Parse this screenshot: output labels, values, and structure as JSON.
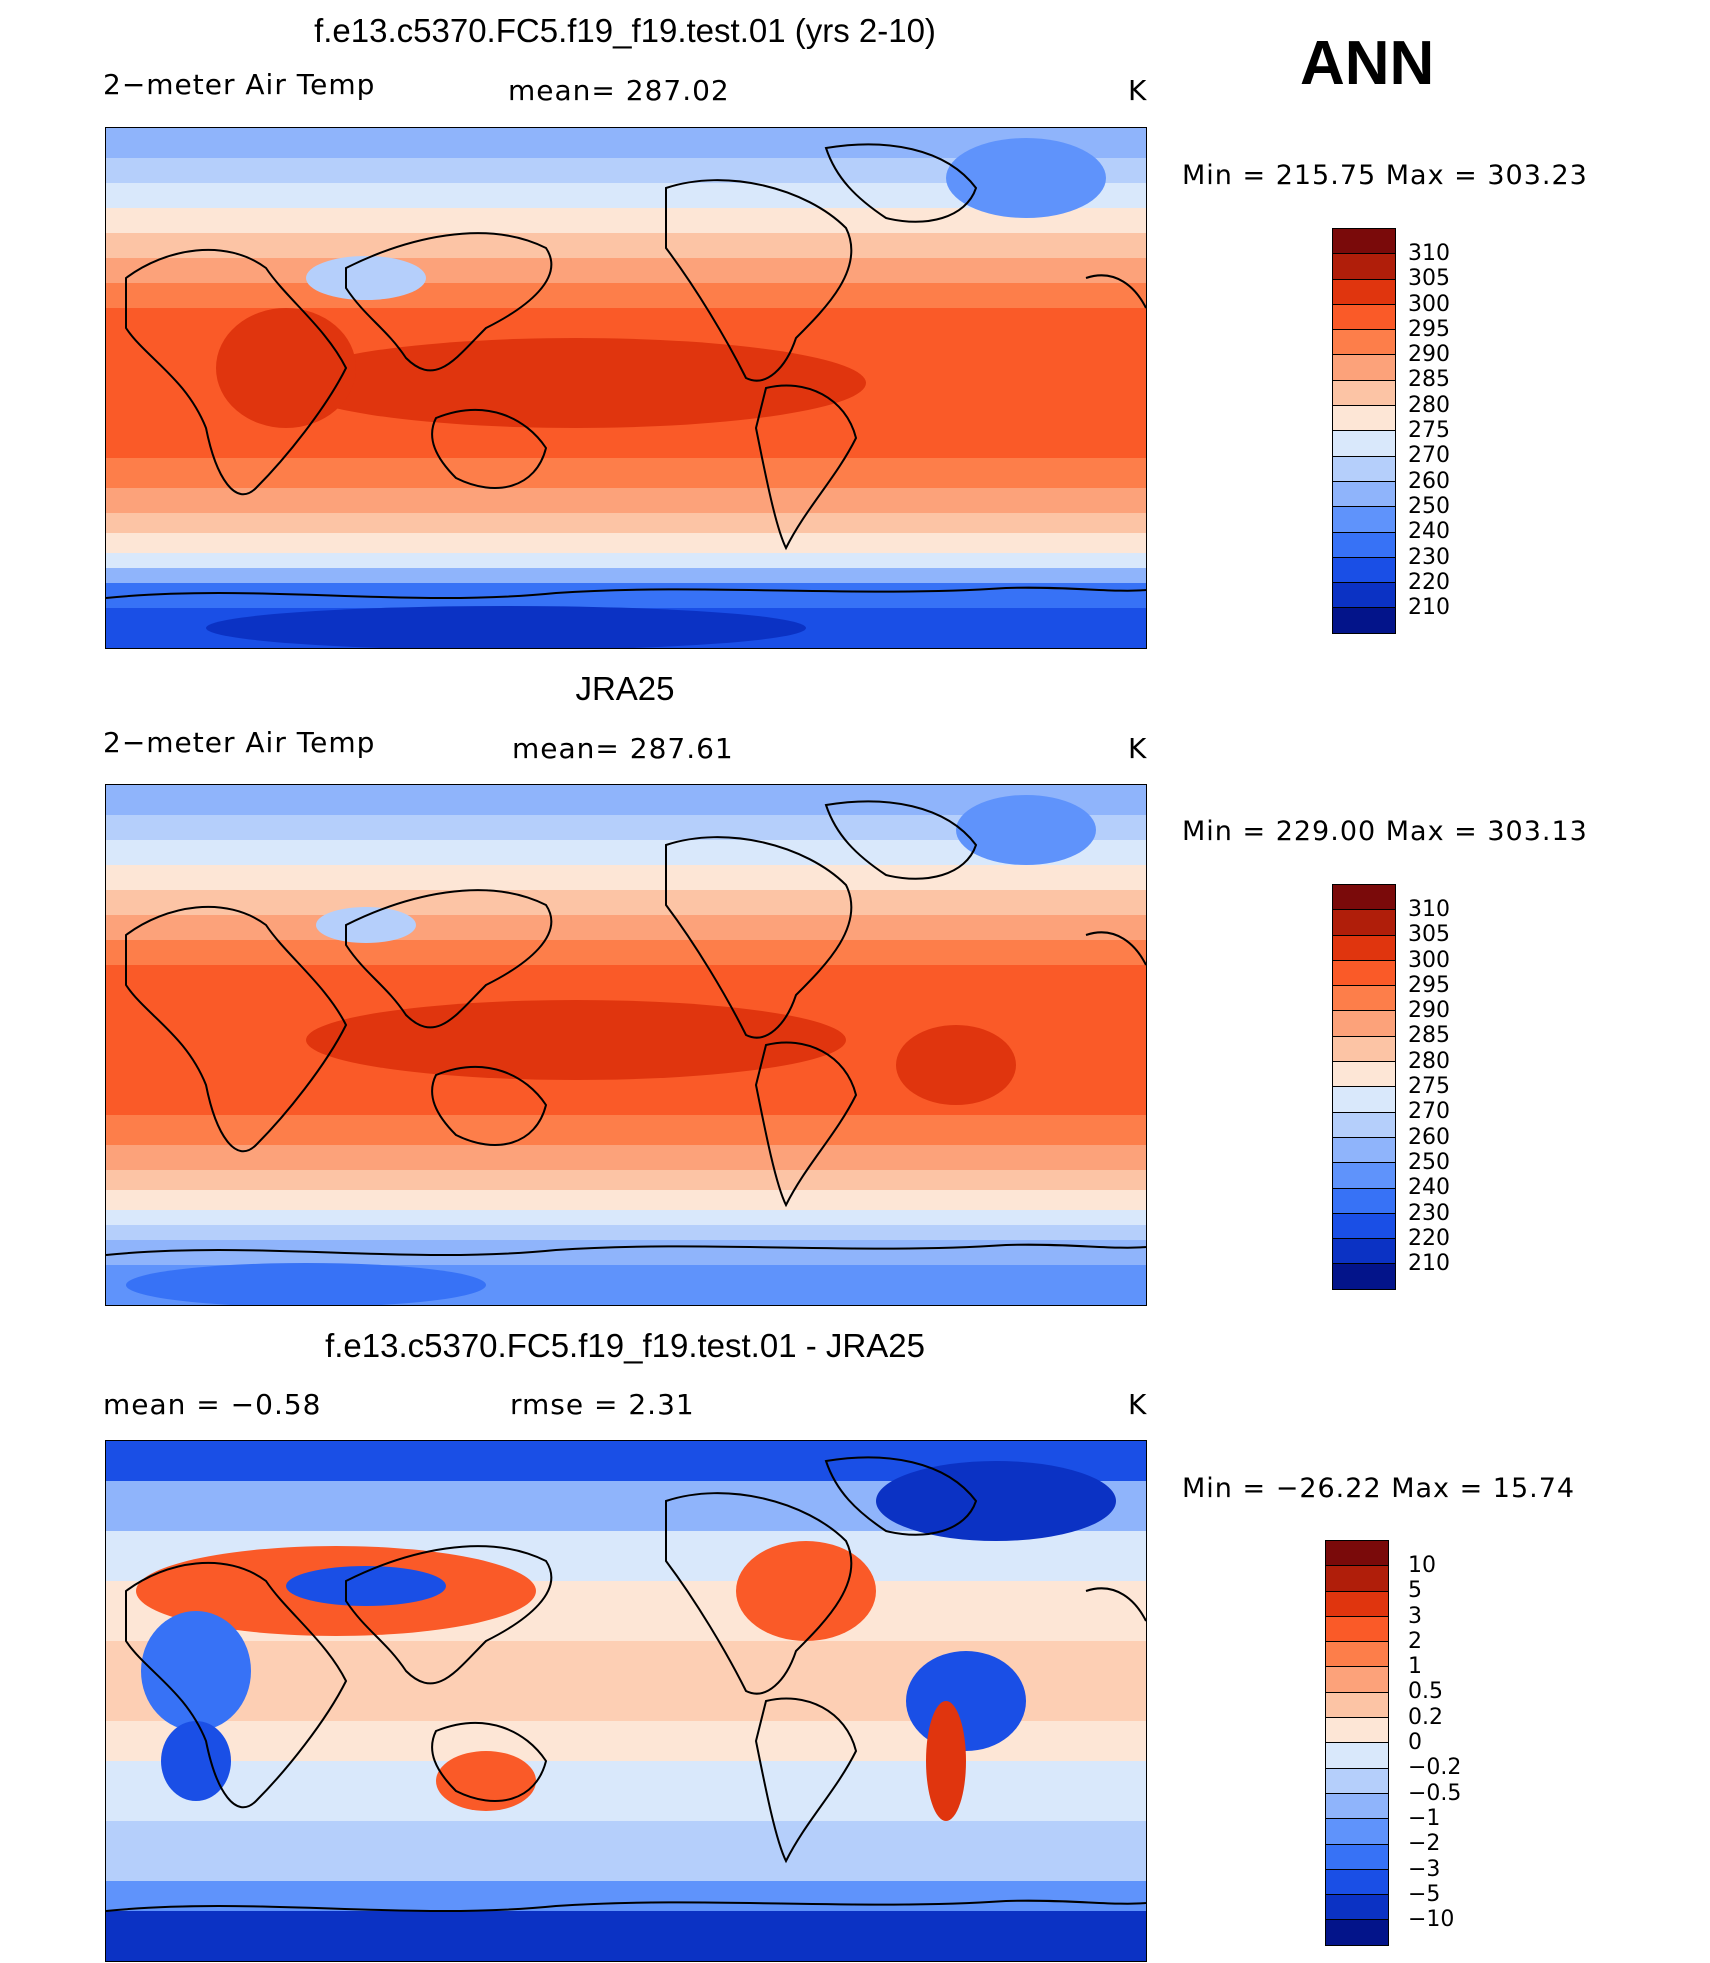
{
  "season": "ANN",
  "units": "K",
  "panels": [
    {
      "id": "model",
      "title": "f.e13.c5370.FC5.f19_f19.test.01 (yrs 2-10)",
      "variable": "2−meter Air Temp",
      "stat1": "mean=  287.02",
      "stat2": "",
      "units": "K",
      "minmax": "Min  =  215.75  Max  =  303.23"
    },
    {
      "id": "obs",
      "title": "JRA25",
      "variable": "2−meter Air Temp",
      "stat1": "mean=  287.61",
      "stat2": "",
      "units": "K",
      "minmax": "Min  =  229.00  Max  =  303.13"
    },
    {
      "id": "diff",
      "title": "f.e13.c5370.FC5.f19_f19.test.01 - JRA25",
      "variable": "mean  =    −0.58",
      "stat1": "rmse  =     2.31",
      "stat2": "",
      "units": "K",
      "minmax": "Min  =  −26.22  Max  =    15.74"
    }
  ],
  "colorbars": {
    "abs": {
      "colors": [
        "#7a0a0a",
        "#b01e0a",
        "#e0350e",
        "#fa5a28",
        "#fd7e4a",
        "#fca27a",
        "#fcc4a5",
        "#fde6d6",
        "#d9e8fb",
        "#b5cffb",
        "#8fb4fb",
        "#5f93fb",
        "#3772f6",
        "#1a4fe6",
        "#0b32c4",
        "#03148a"
      ],
      "labels": [
        "310",
        "305",
        "300",
        "295",
        "290",
        "285",
        "280",
        "275",
        "270",
        "260",
        "250",
        "240",
        "230",
        "220",
        "210"
      ]
    },
    "diff": {
      "colors": [
        "#7a0a0a",
        "#b01e0a",
        "#e0350e",
        "#fa5a28",
        "#fd7e4a",
        "#fca27a",
        "#fcc4a5",
        "#fde6d6",
        "#d9e8fb",
        "#b5cffb",
        "#8fb4fb",
        "#5f93fb",
        "#3772f6",
        "#1a4fe6",
        "#0b32c4",
        "#03148a"
      ],
      "labels": [
        "10",
        "5",
        "3",
        "2",
        "1",
        "0.5",
        "0.2",
        "0",
        "−0.2",
        "−0.5",
        "−1",
        "−2",
        "−3",
        "−5",
        "−10"
      ]
    }
  }
}
